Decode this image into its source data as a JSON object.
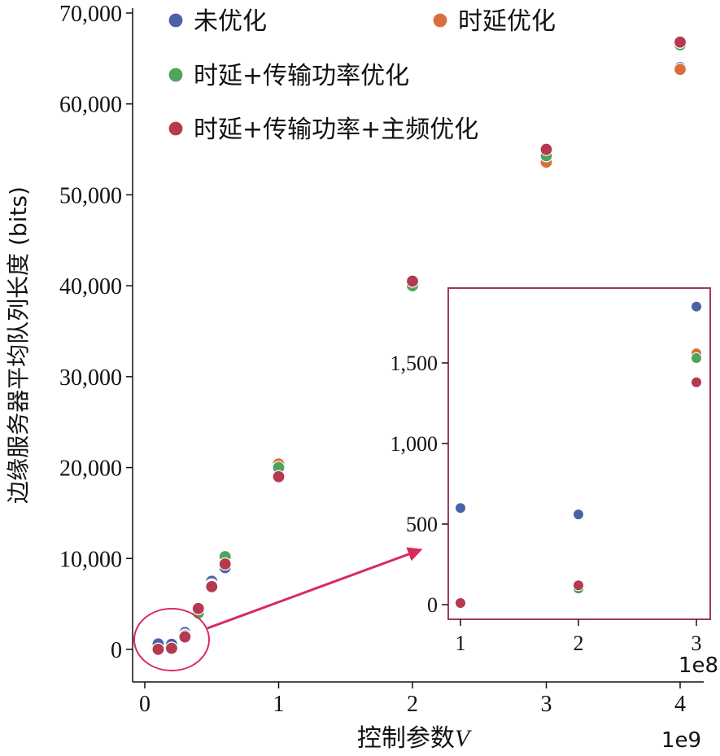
{
  "chart_data": {
    "type": "scatter",
    "xlabel": "控制参数",
    "xlabel_var": "V",
    "ylabel": "边缘服务器平均队列长度 (bits)",
    "x_offset_label": "1e9",
    "xlim": [
      -0.08,
      4.0
    ],
    "ylim": [
      -3500,
      70000
    ],
    "xticks": [
      0,
      1,
      2,
      3,
      4
    ],
    "yticks": [
      0,
      10000,
      20000,
      30000,
      40000,
      50000,
      60000,
      70000
    ],
    "ytick_labels": [
      "0",
      "10,000",
      "20,000",
      "30,000",
      "40,000",
      "50,000",
      "60,000",
      "70,000"
    ],
    "xtick_labels": [
      "0",
      "1",
      "2",
      "3",
      "4"
    ],
    "grid": false,
    "legend_position": "top",
    "series": [
      {
        "name": "未优化",
        "color": "#4a63a8",
        "x": [
          0.1,
          0.2,
          0.3,
          0.4,
          0.5,
          0.6,
          1.0,
          2.0,
          3.0,
          4.0
        ],
        "y": [
          600,
          560,
          1850,
          4300,
          7500,
          9000,
          19900,
          40200,
          54500,
          64000
        ]
      },
      {
        "name": "时延优化",
        "color": "#d9703c",
        "x": [
          0.1,
          0.2,
          0.3,
          0.4,
          0.5,
          0.6,
          1.0,
          2.0,
          3.0,
          4.0
        ],
        "y": [
          10,
          100,
          1560,
          4100,
          7100,
          10000,
          20400,
          40300,
          53600,
          63800
        ]
      },
      {
        "name": "时延+传输功率优化",
        "color": "#4ea45a",
        "x": [
          0.1,
          0.2,
          0.3,
          0.4,
          0.5,
          0.6,
          1.0,
          2.0,
          3.0,
          4.0
        ],
        "y": [
          10,
          100,
          1530,
          4000,
          7000,
          10200,
          20000,
          40000,
          54300,
          66500
        ]
      },
      {
        "name": "时延+传输功率+主频优化",
        "color": "#b5394f",
        "x": [
          0.1,
          0.2,
          0.3,
          0.4,
          0.5,
          0.6,
          1.0,
          2.0,
          3.0,
          4.0
        ],
        "y": [
          10,
          120,
          1380,
          4500,
          6900,
          9400,
          19000,
          40500,
          55000,
          66800
        ]
      }
    ],
    "inset": {
      "x_offset_label": "1e8",
      "xlim": [
        0.9,
        3.1
      ],
      "ylim": [
        -80,
        1960
      ],
      "xticks": [
        1,
        2,
        3
      ],
      "xtick_labels": [
        "1",
        "2",
        "3"
      ],
      "yticks": [
        0,
        500,
        1000,
        1500
      ],
      "ytick_labels": [
        "0",
        "500",
        "1,000",
        "1,500"
      ],
      "series": [
        {
          "name": "未优化",
          "color": "#4a63a8",
          "x": [
            1,
            2,
            3
          ],
          "y": [
            600,
            560,
            1850
          ]
        },
        {
          "name": "时延优化",
          "color": "#d9703c",
          "x": [
            1,
            2,
            3
          ],
          "y": [
            10,
            100,
            1560
          ]
        },
        {
          "name": "时延+传输功率优化",
          "color": "#4ea45a",
          "x": [
            1,
            2,
            3
          ],
          "y": [
            10,
            100,
            1530
          ]
        },
        {
          "name": "时延+传输功率+主频优化",
          "color": "#b5394f",
          "x": [
            1,
            2,
            3
          ],
          "y": [
            10,
            120,
            1380
          ]
        }
      ]
    },
    "zoom_color": "#d92a5a",
    "inset_border_color": "#9c3a62"
  }
}
